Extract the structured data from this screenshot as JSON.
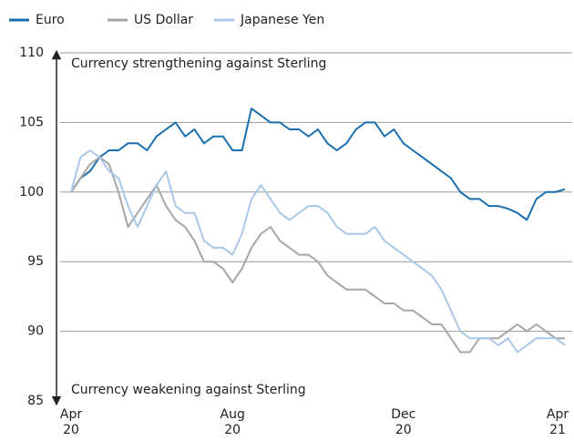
{
  "chart_data": {
    "type": "line",
    "categories": [
      "Apr 20",
      null,
      null,
      null,
      null,
      null,
      null,
      null,
      null,
      null,
      null,
      null,
      null,
      null,
      null,
      null,
      null,
      "Aug 20",
      null,
      null,
      null,
      null,
      null,
      null,
      null,
      null,
      null,
      null,
      null,
      null,
      null,
      null,
      null,
      null,
      null,
      "Dec 20",
      null,
      null,
      null,
      null,
      null,
      null,
      null,
      null,
      null,
      null,
      null,
      null,
      null,
      null,
      null,
      null,
      "Apr 21"
    ],
    "series": [
      {
        "name": "Euro",
        "color": "#1a6fb0",
        "values": [
          100,
          101,
          101.5,
          102.5,
          103,
          103,
          103.5,
          103.5,
          103,
          104,
          104.5,
          105,
          104,
          104.5,
          103.5,
          104,
          104,
          103,
          103,
          106,
          105.5,
          105,
          105,
          104.5,
          104.5,
          104,
          104.5,
          103.5,
          103,
          103.5,
          104.5,
          105,
          105,
          104,
          104.5,
          103.5,
          103,
          102.5,
          102,
          101.5,
          101,
          100,
          99.5,
          99.5,
          99,
          99,
          98.8,
          98.5,
          98,
          99.5,
          100,
          100,
          100.2
        ]
      },
      {
        "name": "US Dollar",
        "color": "#a6a6a6",
        "values": [
          100,
          101,
          102,
          102.5,
          102,
          100,
          97.5,
          98.5,
          99.5,
          100.5,
          99,
          98,
          97.5,
          96.5,
          95,
          95,
          94.5,
          93.5,
          94.5,
          96,
          97,
          97.5,
          96.5,
          96,
          95.5,
          95.5,
          95,
          94,
          93.5,
          93,
          93,
          93,
          92.5,
          92,
          92,
          91.5,
          91.5,
          91,
          90.5,
          90.5,
          89.5,
          88.5,
          88.5,
          89.5,
          89.5,
          89.5,
          90,
          90.5,
          90,
          90.5,
          90,
          89.5,
          89.5
        ]
      },
      {
        "name": "Japanese Yen",
        "color": "#a9c8e8",
        "values": [
          100,
          102.5,
          103,
          102.5,
          101.5,
          101,
          99,
          97.5,
          99,
          100.5,
          101.5,
          99,
          98.5,
          98.5,
          96.5,
          96,
          96,
          95.5,
          97,
          99.5,
          100.5,
          99.5,
          98.5,
          98,
          98.5,
          99,
          99,
          98.5,
          97.5,
          97,
          97,
          97,
          97.5,
          96.5,
          96,
          95.5,
          95,
          94.5,
          94,
          93,
          91.5,
          90,
          89.5,
          89.5,
          89.5,
          89,
          89.5,
          88.5,
          89,
          89.5,
          89.5,
          89.5,
          89
        ]
      }
    ],
    "ylim": [
      85,
      110
    ],
    "yticks": [
      85,
      90,
      95,
      100,
      105,
      110
    ],
    "grid": true,
    "annotations": [
      "Currency strengthening against Sterling",
      "Currency weakening against Sterling"
    ]
  }
}
